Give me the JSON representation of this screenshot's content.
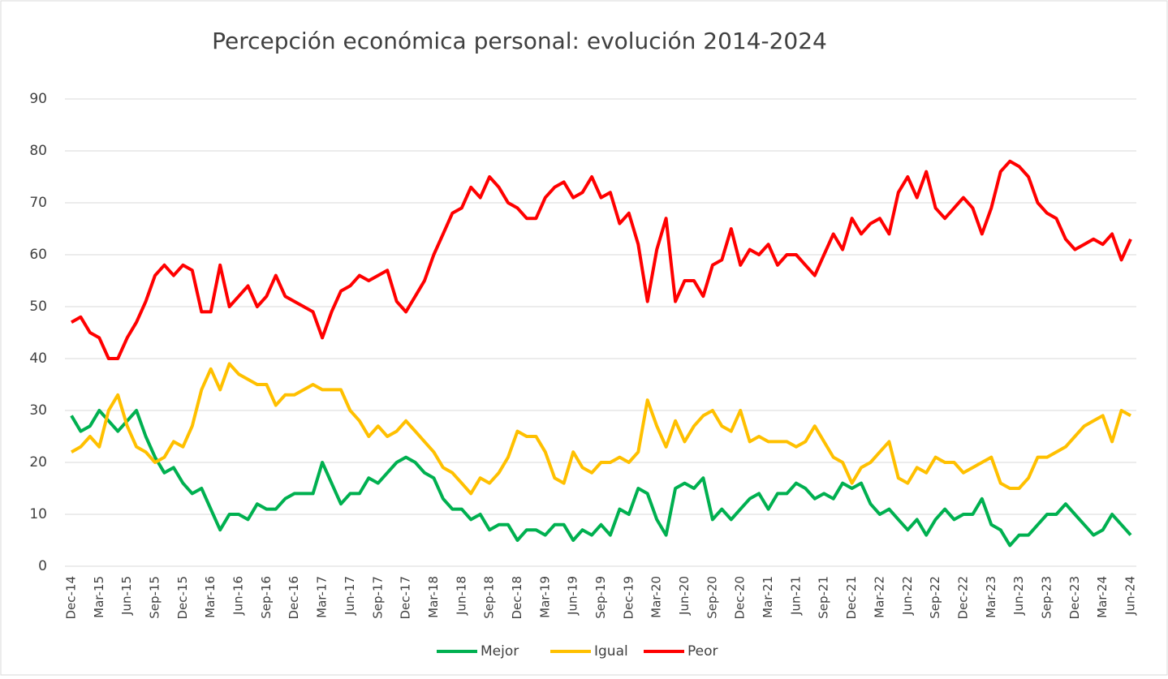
{
  "chart_data": {
    "type": "line",
    "title": "Percepción económica personal: evolución 2014-2024",
    "categories": [
      "Dec-14",
      null,
      null,
      "Mar-15",
      null,
      null,
      "Jun-15",
      null,
      null,
      "Sep-15",
      null,
      null,
      "Dec-15",
      null,
      null,
      "Mar-16",
      null,
      null,
      "Jun-16",
      null,
      null,
      "Sep-16",
      null,
      null,
      "Dec-16",
      null,
      null,
      "Mar-17",
      null,
      null,
      "Jun-17",
      null,
      null,
      "Sep-17",
      null,
      null,
      "Dec-17",
      null,
      null,
      "Mar-18",
      null,
      null,
      "Jun-18",
      null,
      null,
      "Sep-18",
      null,
      null,
      "Dec-18",
      null,
      null,
      "Mar-19",
      null,
      null,
      "Jun-19",
      null,
      null,
      "Sep-19",
      null,
      null,
      "Dec-19",
      null,
      null,
      "Mar-20",
      null,
      null,
      "Jun-20",
      null,
      null,
      "Sep-20",
      null,
      null,
      "Dec-20",
      null,
      null,
      "Mar-21",
      null,
      null,
      "Jun-21",
      null,
      null,
      "Sep-21",
      null,
      null,
      "Dec-21",
      null,
      null,
      "Mar-22",
      null,
      null,
      "Jun-22",
      null,
      null,
      "Sep-22",
      null,
      null,
      "Dec-22",
      null,
      null,
      "Mar-23",
      null,
      null,
      "Jun-23",
      null,
      null,
      "Sep-23",
      null,
      null,
      "Dec-23",
      null,
      null,
      "Mar-24",
      null,
      null,
      "Jun-24"
    ],
    "series": [
      {
        "name": "Mejor",
        "color": "#00b050",
        "values": [
          29,
          26,
          27,
          30,
          28,
          26,
          28,
          30,
          25,
          21,
          18,
          19,
          16,
          14,
          15,
          11,
          7,
          10,
          10,
          9,
          12,
          11,
          11,
          13,
          14,
          14,
          14,
          20,
          16,
          12,
          14,
          14,
          17,
          16,
          18,
          20,
          21,
          20,
          18,
          17,
          13,
          11,
          11,
          9,
          10,
          7,
          8,
          8,
          5,
          7,
          7,
          6,
          8,
          8,
          5,
          7,
          6,
          8,
          6,
          11,
          10,
          15,
          14,
          9,
          6,
          15,
          16,
          15,
          17,
          9,
          11,
          9,
          11,
          13,
          14,
          11,
          14,
          14,
          16,
          15,
          13,
          14,
          13,
          16,
          15,
          16,
          12,
          10,
          11,
          9,
          7,
          9,
          6,
          9,
          11,
          9,
          10,
          10,
          13,
          8,
          7,
          4,
          6,
          6,
          8,
          10,
          10,
          12,
          10,
          8,
          6,
          7,
          10,
          8,
          6
        ]
      },
      {
        "name": "Igual",
        "color": "#ffc000",
        "values": [
          22,
          23,
          25,
          23,
          30,
          33,
          27,
          23,
          22,
          20,
          21,
          24,
          23,
          27,
          34,
          38,
          34,
          39,
          37,
          36,
          35,
          35,
          31,
          33,
          33,
          34,
          35,
          34,
          34,
          34,
          30,
          28,
          25,
          27,
          25,
          26,
          28,
          26,
          24,
          22,
          19,
          18,
          16,
          14,
          17,
          16,
          18,
          21,
          26,
          25,
          25,
          22,
          17,
          16,
          22,
          19,
          18,
          20,
          20,
          21,
          20,
          22,
          32,
          27,
          23,
          28,
          24,
          27,
          29,
          30,
          27,
          26,
          30,
          24,
          25,
          24,
          24,
          24,
          23,
          24,
          27,
          24,
          21,
          20,
          16,
          19,
          20,
          22,
          24,
          17,
          16,
          19,
          18,
          21,
          20,
          20,
          18,
          19,
          20,
          21,
          16,
          15,
          15,
          17,
          21,
          21,
          22,
          23,
          25,
          27,
          28,
          29,
          24,
          30,
          29
        ]
      },
      {
        "name": "Peor",
        "color": "#ff0000",
        "values": [
          47,
          48,
          45,
          44,
          40,
          40,
          44,
          47,
          51,
          56,
          58,
          56,
          58,
          57,
          49,
          49,
          58,
          50,
          52,
          54,
          50,
          52,
          56,
          52,
          51,
          50,
          49,
          44,
          49,
          53,
          54,
          56,
          55,
          56,
          57,
          51,
          49,
          52,
          55,
          60,
          64,
          68,
          69,
          73,
          71,
          75,
          73,
          70,
          69,
          67,
          67,
          71,
          73,
          74,
          71,
          72,
          75,
          71,
          72,
          66,
          68,
          62,
          51,
          61,
          67,
          51,
          55,
          55,
          52,
          58,
          59,
          65,
          58,
          61,
          60,
          62,
          58,
          60,
          60,
          58,
          56,
          60,
          64,
          61,
          67,
          64,
          66,
          67,
          64,
          72,
          75,
          71,
          76,
          69,
          67,
          69,
          71,
          69,
          64,
          69,
          76,
          78,
          77,
          75,
          70,
          68,
          67,
          63,
          61,
          62,
          63,
          62,
          64,
          59,
          63
        ]
      }
    ],
    "ylim": [
      0,
      90
    ],
    "yticks": [
      0,
      10,
      20,
      30,
      40,
      50,
      60,
      70,
      80,
      90
    ],
    "grid": true,
    "legend": "bottom"
  }
}
